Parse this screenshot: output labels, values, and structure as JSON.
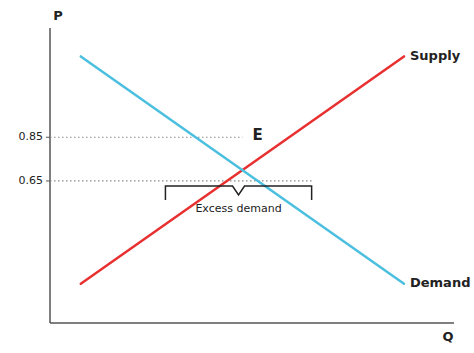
{
  "chart_data": {
    "type": "line",
    "xlabel": "Q",
    "ylabel": "P",
    "xlim": [
      0,
      1.05
    ],
    "ylim": [
      0,
      1.35
    ],
    "xticks": [],
    "yticks": [
      0.65,
      0.85
    ],
    "tick_labels": "y",
    "grid": false,
    "series": [
      {
        "name": "Supply",
        "color": "#e83030",
        "x": [
          0.08,
          0.92
        ],
        "values": [
          0.18,
          1.22
        ]
      },
      {
        "name": "Demand",
        "color": "#4bbfdf",
        "x": [
          0.08,
          0.92
        ],
        "values": [
          1.22,
          0.18
        ]
      }
    ],
    "annotations": [
      {
        "text": "E",
        "x": 0.5,
        "y": 0.85
      },
      {
        "text": "Excess demand",
        "x_start": 0.3,
        "x_end": 0.68,
        "y": 0.65
      }
    ]
  }
}
